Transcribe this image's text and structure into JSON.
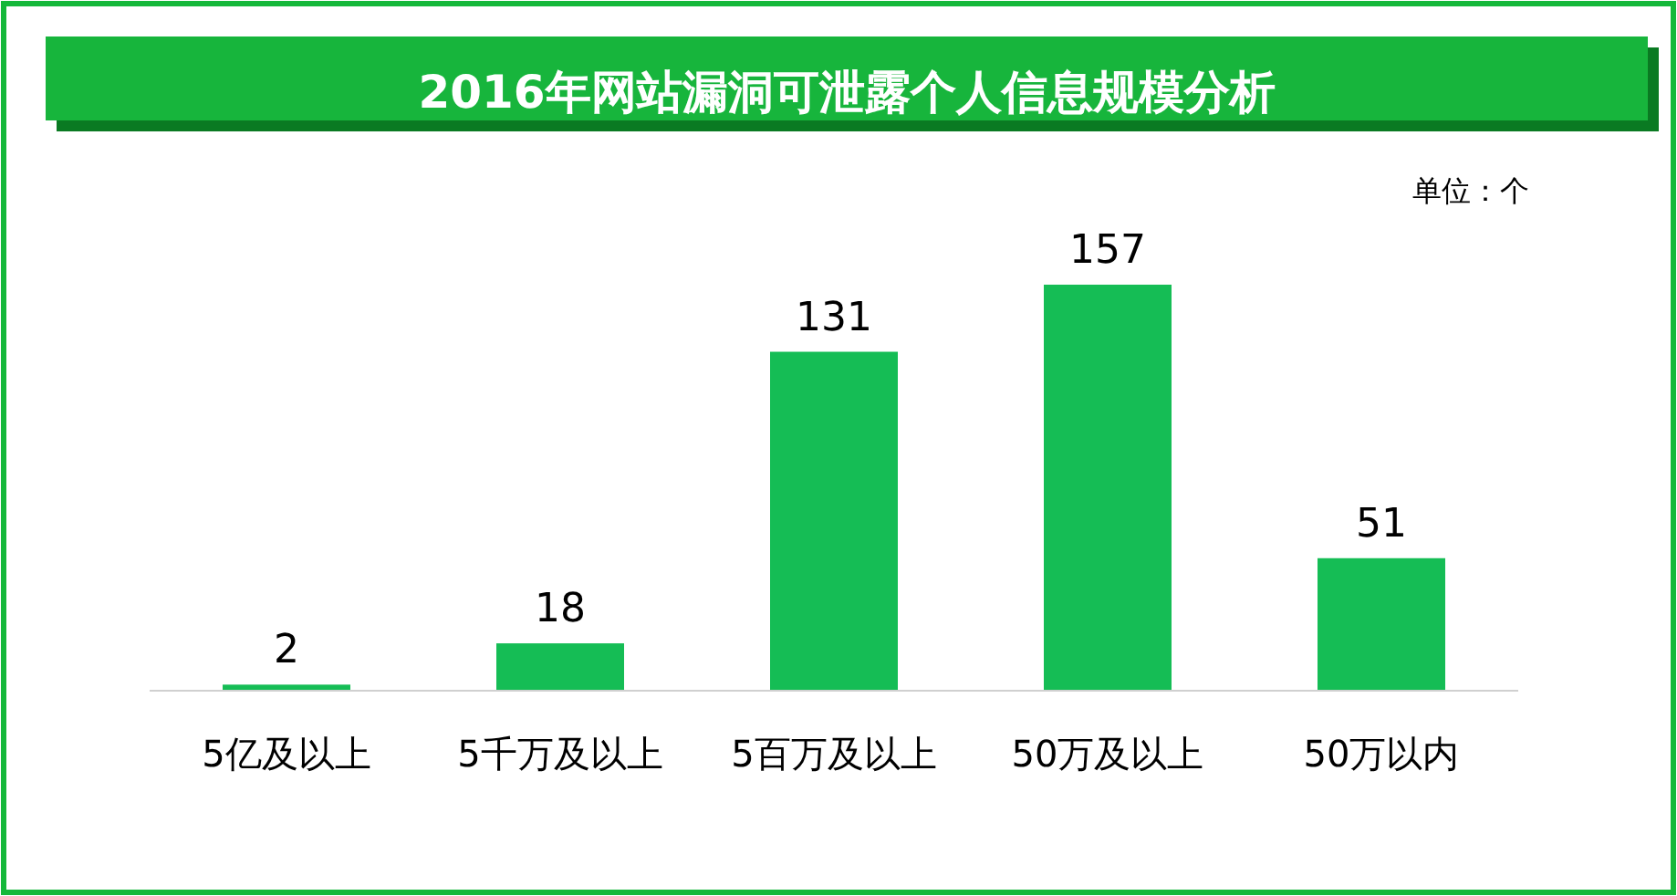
{
  "chart_data": {
    "type": "bar",
    "title": "2016年网站漏洞可泄露个人信息规模分析",
    "categories": [
      "5亿及以上",
      "5千万及以上",
      "5百万及以上",
      "50万及以上",
      "50万以内"
    ],
    "values": [
      2,
      18,
      131,
      157,
      51
    ],
    "color": "#15bd55",
    "data_labels": true,
    "annotations": [
      "单位：个"
    ]
  }
}
